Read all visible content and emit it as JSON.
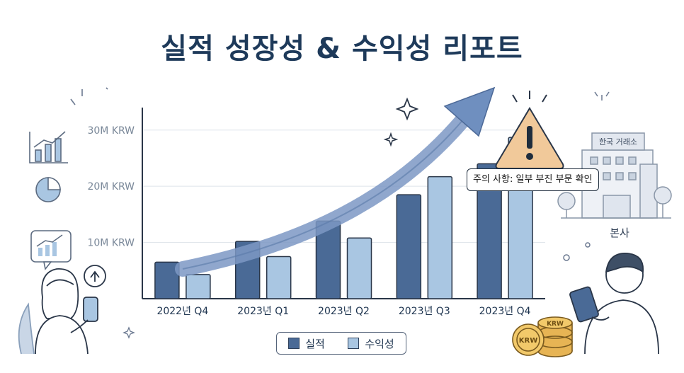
{
  "title": "실적 성장성 & 수익성 리포트",
  "chart_data": {
    "type": "bar",
    "categories": [
      "2022년 Q4",
      "2023년 Q1",
      "2023년 Q2",
      "2023년 Q3",
      "2023년 Q4"
    ],
    "series": [
      {
        "name": "실적",
        "values": [
          6.5,
          10.2,
          13.8,
          18.5,
          24.0
        ],
        "color": "#4a6a96"
      },
      {
        "name": "수익성",
        "values": [
          4.3,
          7.5,
          10.8,
          21.7,
          28.7
        ],
        "color": "#a9c6e2"
      }
    ],
    "yticks": [
      "10M KRW",
      "20M KRW",
      "30M KRW"
    ],
    "ytick_values": [
      10,
      20,
      30
    ],
    "ylim": [
      0,
      34
    ],
    "grid": true,
    "legend_position": "bottom"
  },
  "annotations": {
    "warning": "주의 사항: 일부 부진 부문 확인",
    "building_sign": "한국 거래소",
    "building_label": "본사",
    "coin_text": "KRW",
    "icons": [
      "growth-chart-icon",
      "pie-chart-icon",
      "warning-icon",
      "sparkle-icon",
      "building-icon",
      "coin-stack-icon"
    ]
  }
}
